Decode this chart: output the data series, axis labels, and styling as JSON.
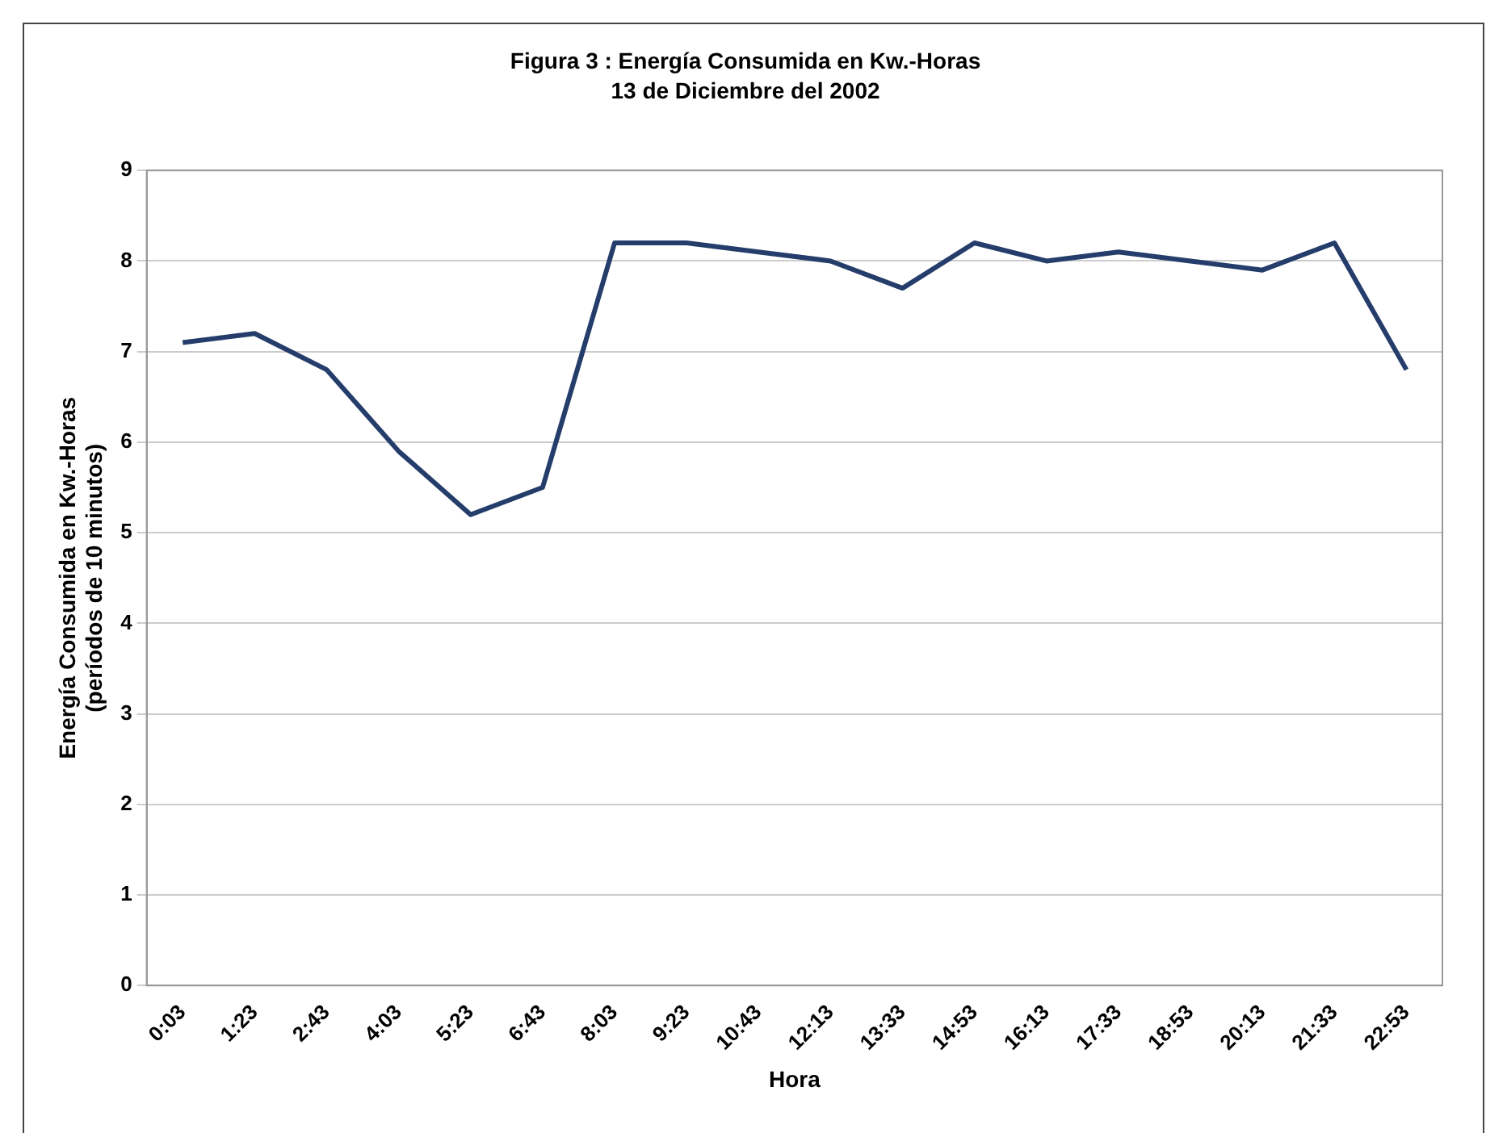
{
  "chart_data": {
    "type": "line",
    "title": "Figura 3 : Energía Consumida en Kw.-Horas",
    "subtitle": "13 de Diciembre del 2002",
    "xlabel": "Hora",
    "ylabel": "Energía Consumida en Kw.-Horas\n(períodos de 10 minutos)",
    "categories": [
      "0:03",
      "1:23",
      "2:43",
      "4:03",
      "5:23",
      "6:43",
      "8:03",
      "9:23",
      "10:43",
      "12:13",
      "13:33",
      "14:53",
      "16:13",
      "17:33",
      "18:53",
      "20:13",
      "21:33",
      "22:53"
    ],
    "series": [
      {
        "color": "#253d6b",
        "values": [
          7.1,
          7.2,
          6.8,
          5.9,
          5.2,
          5.5,
          8.2,
          8.2,
          8.1,
          8.0,
          7.7,
          8.2,
          8.0,
          8.1,
          8.0,
          7.9,
          8.2,
          6.8
        ]
      }
    ],
    "ylim": [
      0,
      9
    ],
    "yticks": [
      0,
      1,
      2,
      3,
      4,
      5,
      6,
      7,
      8,
      9
    ],
    "grid": "y",
    "legend": false,
    "marker": "none",
    "line_style": "solid"
  }
}
